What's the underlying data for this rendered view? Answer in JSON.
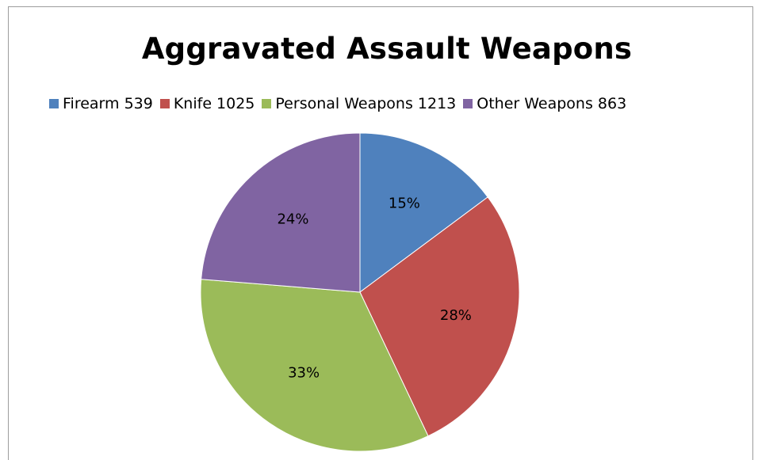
{
  "chart_data": {
    "type": "pie",
    "title": "Aggravated Assault Weapons",
    "legend_position": "top",
    "slices": [
      {
        "legend_label": "Firearm 539",
        "value": 539,
        "percent_label": "15%",
        "color": "#4f81bd"
      },
      {
        "legend_label": "Knife 1025",
        "value": 1025,
        "percent_label": "28%",
        "color": "#c0504d"
      },
      {
        "legend_label": "Personal Weapons 1213",
        "value": 1213,
        "percent_label": "33%",
        "color": "#9bbb59"
      },
      {
        "legend_label": "Other Weapons 863",
        "value": 863,
        "percent_label": "24%",
        "color": "#8064a2"
      }
    ]
  }
}
